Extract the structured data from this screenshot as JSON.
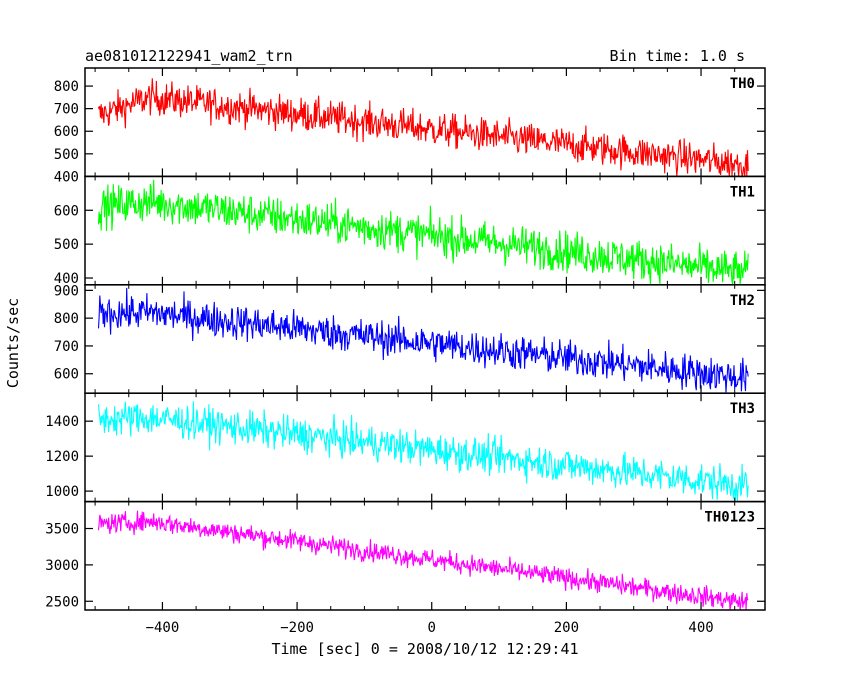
{
  "header": {
    "title": "ae081012122941_wam2_trn",
    "bin_time": "Bin time: 1.0 s"
  },
  "chart_data": {
    "type": "line",
    "xlabel": "Time [sec] 0 = 2008/10/12 12:29:41",
    "ylabel": "Counts/sec",
    "xlim": [
      -515,
      495
    ],
    "x_ticks": [
      -400,
      -200,
      0,
      200,
      400
    ],
    "x_range_data": [
      -495,
      470
    ],
    "panels": [
      {
        "name": "TH0",
        "color": "#ff0000",
        "ylim": [
          400,
          880
        ],
        "y_ticks": [
          400,
          500,
          600,
          700,
          800
        ],
        "start": 670,
        "peak": 750,
        "end": 450,
        "noise": 38
      },
      {
        "name": "TH1",
        "color": "#00ff00",
        "ylim": [
          380,
          700
        ],
        "y_ticks": [
          400,
          500,
          600
        ],
        "start": 610,
        "peak": 625,
        "end": 415,
        "noise": 30
      },
      {
        "name": "TH2",
        "color": "#0000ff",
        "ylim": [
          530,
          920
        ],
        "y_ticks": [
          600,
          700,
          800,
          900
        ],
        "start": 820,
        "peak": 820,
        "end": 585,
        "noise": 32
      },
      {
        "name": "TH3",
        "color": "#00ffff",
        "ylim": [
          940,
          1560
        ],
        "y_ticks": [
          1000,
          1200,
          1400
        ],
        "start": 1410,
        "peak": 1420,
        "end": 1030,
        "noise": 50
      },
      {
        "name": "TH0123",
        "color": "#ff00ff",
        "ylim": [
          2380,
          3870
        ],
        "y_ticks": [
          2500,
          3000,
          3500
        ],
        "start": 3560,
        "peak": 3600,
        "end": 2480,
        "noise": 70
      }
    ]
  }
}
